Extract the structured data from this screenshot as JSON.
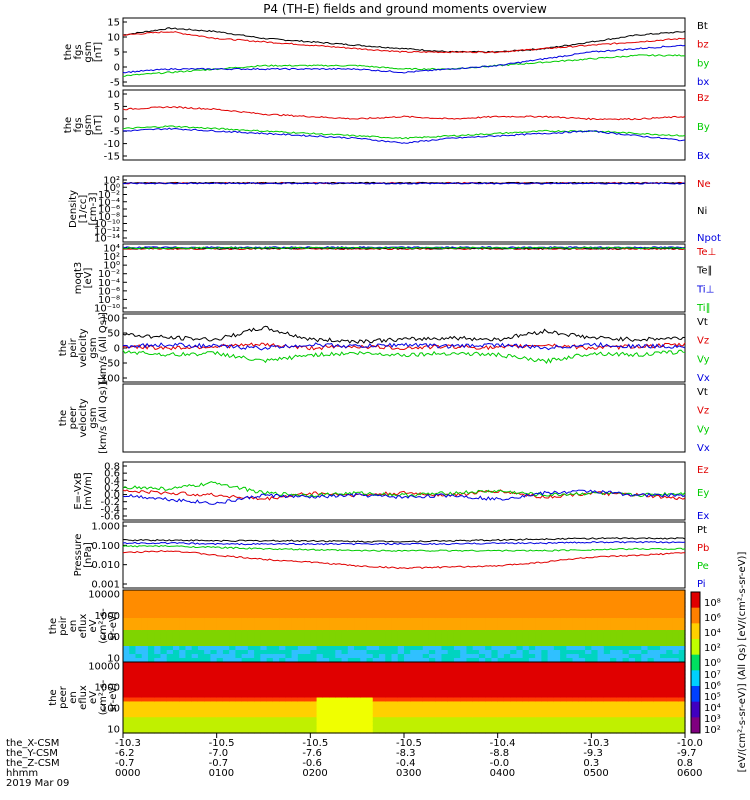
{
  "title": "P4 (TH-E) fields and ground moments overview",
  "colors": {
    "black": "#000000",
    "red": "#e00000",
    "green": "#00cc00",
    "blue": "#0000e0",
    "purple": "#800080"
  },
  "chart_data": [
    {
      "type": "line",
      "ylabel": [
        "the",
        "fgs",
        "gsm",
        "[nT]"
      ],
      "yticks": [
        "15",
        "10",
        "5",
        "0",
        "-5"
      ],
      "ylim": [
        -5,
        15
      ],
      "series": [
        {
          "name": "Bt",
          "color": "#000000",
          "values": [
            10,
            12,
            11,
            9,
            8,
            7,
            6,
            5,
            5,
            6,
            8,
            10,
            11
          ]
        },
        {
          "name": "bz",
          "color": "#e00000",
          "values": [
            10,
            11,
            9,
            8,
            7,
            6,
            5,
            5,
            5,
            6,
            7,
            8,
            9
          ]
        },
        {
          "name": "by",
          "color": "#00cc00",
          "values": [
            -2,
            -1,
            0,
            1,
            1,
            1,
            0,
            0,
            1,
            2,
            3,
            4,
            4
          ]
        },
        {
          "name": "bx",
          "color": "#0000e0",
          "values": [
            -1,
            0,
            0,
            0,
            0,
            0,
            -1,
            0,
            1,
            3,
            5,
            6,
            7
          ]
        }
      ]
    },
    {
      "type": "line",
      "ylabel": [
        "the",
        "fgs",
        "gsm",
        "[nT]"
      ],
      "yticks": [
        "10",
        "5",
        "0",
        "-5",
        "-10",
        "-15"
      ],
      "ylim": [
        -18,
        11
      ],
      "series": [
        {
          "name": "Bz",
          "color": "#e00000",
          "values": [
            3,
            4,
            3,
            1,
            0,
            -1,
            0,
            -1,
            0,
            0,
            -1,
            -1,
            0
          ]
        },
        {
          "name": "By",
          "color": "#00cc00",
          "values": [
            -5,
            -4,
            -5,
            -6,
            -7,
            -8,
            -9,
            -8,
            -7,
            -6,
            -6,
            -7,
            -8
          ]
        },
        {
          "name": "Bx",
          "color": "#0000e0",
          "values": [
            -6,
            -5,
            -6,
            -7,
            -8,
            -9,
            -11,
            -9,
            -8,
            -7,
            -6,
            -8,
            -10
          ]
        }
      ]
    },
    {
      "type": "line",
      "ylabel": [
        "Density",
        "[1/cc]",
        "[cm-3]"
      ],
      "yticks": [
        "10²",
        "10⁰",
        "10⁻²",
        "10⁻⁴",
        "10⁻⁶",
        "10⁻⁸",
        "10⁻¹⁰",
        "10⁻¹²",
        "10⁻¹⁴"
      ],
      "ylim": [
        -14,
        2
      ],
      "series": [
        {
          "name": "Ne",
          "color": "#e00000",
          "values": [
            0.3,
            0.3,
            0.3,
            0.3,
            0.3,
            0.3,
            0.3,
            0.3,
            0.3,
            0.3,
            0.3,
            0.3,
            0.3
          ]
        },
        {
          "name": "Ni",
          "color": "#000000",
          "values": [
            0.3,
            0.3,
            0.3,
            0.3,
            0.3,
            0.3,
            0.3,
            0.3,
            0.3,
            0.3,
            0.3,
            0.3,
            0.3
          ]
        },
        {
          "name": "Npot",
          "color": "#0000e0",
          "values": [
            0.2,
            0.2,
            0.2,
            0.2,
            0.2,
            0.2,
            0.2,
            0.2,
            0.2,
            0.2,
            0.2,
            0.2,
            0.2
          ]
        }
      ]
    },
    {
      "type": "line",
      "ylabel": [
        "moqt3",
        "[eV]"
      ],
      "yticks": [
        "10⁴",
        "10²",
        "10⁰",
        "10⁻²",
        "10⁻⁴",
        "10⁻⁶",
        "10⁻⁸",
        "10⁻¹⁰"
      ],
      "ylim": [
        -10,
        4
      ],
      "series": [
        {
          "name": "Te⊥",
          "color": "#e00000",
          "values": [
            3,
            3,
            3,
            3,
            3,
            3,
            3,
            3,
            3,
            3,
            3,
            3,
            3
          ]
        },
        {
          "name": "Te∥",
          "color": "#000000",
          "values": [
            3.1,
            3.1,
            3.1,
            3.1,
            3.1,
            3.1,
            3.1,
            3.1,
            3.1,
            3.1,
            3.1,
            3.1,
            3.1
          ]
        },
        {
          "name": "Ti⊥",
          "color": "#0000e0",
          "values": [
            3.3,
            3.3,
            3.3,
            3.3,
            3.3,
            3.3,
            3.3,
            3.3,
            3.3,
            3.3,
            3.3,
            3.3,
            3.3
          ]
        },
        {
          "name": "Ti∥",
          "color": "#00cc00",
          "values": [
            3.2,
            3.2,
            3.2,
            3.2,
            3.2,
            3.2,
            3.2,
            3.2,
            3.2,
            3.2,
            3.2,
            3.2,
            3.2
          ]
        }
      ]
    },
    {
      "type": "line",
      "ylabel": [
        "the",
        "peir",
        "velocity",
        "gsm",
        "[km/s (All Qs)]"
      ],
      "yticks": [
        "100",
        "50",
        "0",
        "-50",
        "-100"
      ],
      "ylim": [
        -100,
        100
      ],
      "series": [
        {
          "name": "Vt",
          "color": "#000000",
          "values": [
            40,
            30,
            25,
            60,
            25,
            20,
            25,
            30,
            25,
            50,
            30,
            25,
            30
          ]
        },
        {
          "name": "Vz",
          "color": "#e00000",
          "values": [
            5,
            0,
            5,
            10,
            0,
            5,
            0,
            5,
            0,
            10,
            0,
            5,
            10
          ]
        },
        {
          "name": "Vy",
          "color": "#00cc00",
          "values": [
            -10,
            -20,
            -15,
            -40,
            -20,
            -15,
            -20,
            -15,
            -20,
            -40,
            -15,
            -20,
            -10
          ]
        },
        {
          "name": "Vx",
          "color": "#0000e0",
          "values": [
            5,
            10,
            5,
            0,
            10,
            5,
            10,
            5,
            10,
            0,
            10,
            5,
            5
          ]
        }
      ]
    },
    {
      "type": "line",
      "ylabel": [
        "the",
        "peer",
        "velocity",
        "gsm",
        "[km/s (All Qs)]"
      ],
      "yticks": [],
      "ylim": [
        -1,
        1
      ],
      "series": [
        {
          "name": "Vt",
          "color": "#000000",
          "values": []
        },
        {
          "name": "Vz",
          "color": "#e00000",
          "values": []
        },
        {
          "name": "Vy",
          "color": "#00cc00",
          "values": []
        },
        {
          "name": "Vx",
          "color": "#0000e0",
          "values": []
        }
      ]
    },
    {
      "type": "line",
      "ylabel": [
        "E=-VxB",
        "[mV/m]"
      ],
      "yticks": [
        "0.8",
        "0.6",
        "0.4",
        "0.2",
        "0.0",
        "-0.2",
        "-0.4",
        "-0.6"
      ],
      "ylim": [
        -0.6,
        0.8
      ],
      "series": [
        {
          "name": "Ez",
          "color": "#e00000",
          "values": [
            0.1,
            0.05,
            0.0,
            -0.1,
            0.05,
            0.0,
            0.05,
            0.0,
            0.1,
            -0.05,
            0.05,
            0.0,
            -0.1
          ]
        },
        {
          "name": "Ey",
          "color": "#00cc00",
          "values": [
            0.2,
            0.15,
            0.3,
            0.05,
            0.0,
            0.05,
            0.0,
            0.05,
            0.1,
            0.0,
            0.05,
            0.0,
            0.05
          ]
        },
        {
          "name": "Ex",
          "color": "#0000e0",
          "values": [
            0.0,
            -0.1,
            -0.2,
            0.0,
            -0.05,
            0.0,
            -0.05,
            0.0,
            -0.1,
            0.05,
            0.1,
            0.0,
            0.0
          ]
        }
      ]
    },
    {
      "type": "line",
      "log": true,
      "ylabel": [
        "Pressure",
        "[nPa]"
      ],
      "yticks": [
        "1.000",
        "0.100",
        "0.010",
        "0.001"
      ],
      "ylim": [
        0.001,
        1.0
      ],
      "series": [
        {
          "name": "Pt",
          "color": "#000000",
          "values": [
            0.15,
            0.15,
            0.14,
            0.14,
            0.14,
            0.13,
            0.13,
            0.14,
            0.15,
            0.17,
            0.18,
            0.18,
            0.18
          ]
        },
        {
          "name": "Pb",
          "color": "#e00000",
          "values": [
            0.04,
            0.05,
            0.03,
            0.02,
            0.015,
            0.01,
            0.008,
            0.009,
            0.01,
            0.015,
            0.025,
            0.03,
            0.04
          ]
        },
        {
          "name": "Pe",
          "color": "#00cc00",
          "values": [
            0.08,
            0.08,
            0.07,
            0.06,
            0.055,
            0.05,
            0.05,
            0.05,
            0.05,
            0.05,
            0.055,
            0.06,
            0.06
          ]
        },
        {
          "name": "Pi",
          "color": "#0000e0",
          "values": [
            0.11,
            0.11,
            0.1,
            0.1,
            0.1,
            0.1,
            0.1,
            0.1,
            0.11,
            0.11,
            0.12,
            0.12,
            0.12
          ]
        }
      ]
    },
    {
      "type": "heatmap",
      "ylabel": [
        "the",
        "peir",
        "en",
        "eflux",
        "eV",
        "(cm²-s-",
        "sr-eV)"
      ],
      "yticks": [
        "10000",
        "1000",
        "100",
        "10"
      ]
    },
    {
      "type": "heatmap",
      "ylabel": [
        "the",
        "peer",
        "en",
        "eflux",
        "eV",
        "(cm²-s-",
        "sr-eV)"
      ],
      "yticks": [
        "10000",
        "1000",
        "100",
        "10"
      ]
    }
  ],
  "colorbar": {
    "ticks_top": [
      "10⁸",
      "10⁶",
      "10⁴",
      "10²",
      "10⁰"
    ],
    "ticks_bottom": [
      "10⁷",
      "10⁶",
      "10⁵",
      "10⁴",
      "10³",
      "10²"
    ],
    "label": "[eV/(cm²-s-sr-eV)] (All Qs) [eV/(cm²-s-sr-eV)]"
  },
  "xaxis": {
    "rows": [
      {
        "label": "the_X-CSM",
        "values": [
          "-10.3",
          "-10.5",
          "-10.5",
          "-10.5",
          "-10.4",
          "-10.3",
          "-10.0"
        ]
      },
      {
        "label": "the_Y-CSM",
        "values": [
          "-6.2",
          "-7.0",
          "-7.6",
          "-8.3",
          "-8.8",
          "-9.3",
          "-9.7"
        ]
      },
      {
        "label": "the_Z-CSM",
        "values": [
          "-0.7",
          "-0.7",
          "-0.6",
          "-0.4",
          "-0.0",
          "0.3",
          "0.8"
        ]
      },
      {
        "label": "hhmm",
        "values": [
          "0000",
          "0100",
          "0200",
          "0300",
          "0400",
          "0500",
          "0600"
        ]
      }
    ],
    "date": "2019 Mar 09"
  }
}
